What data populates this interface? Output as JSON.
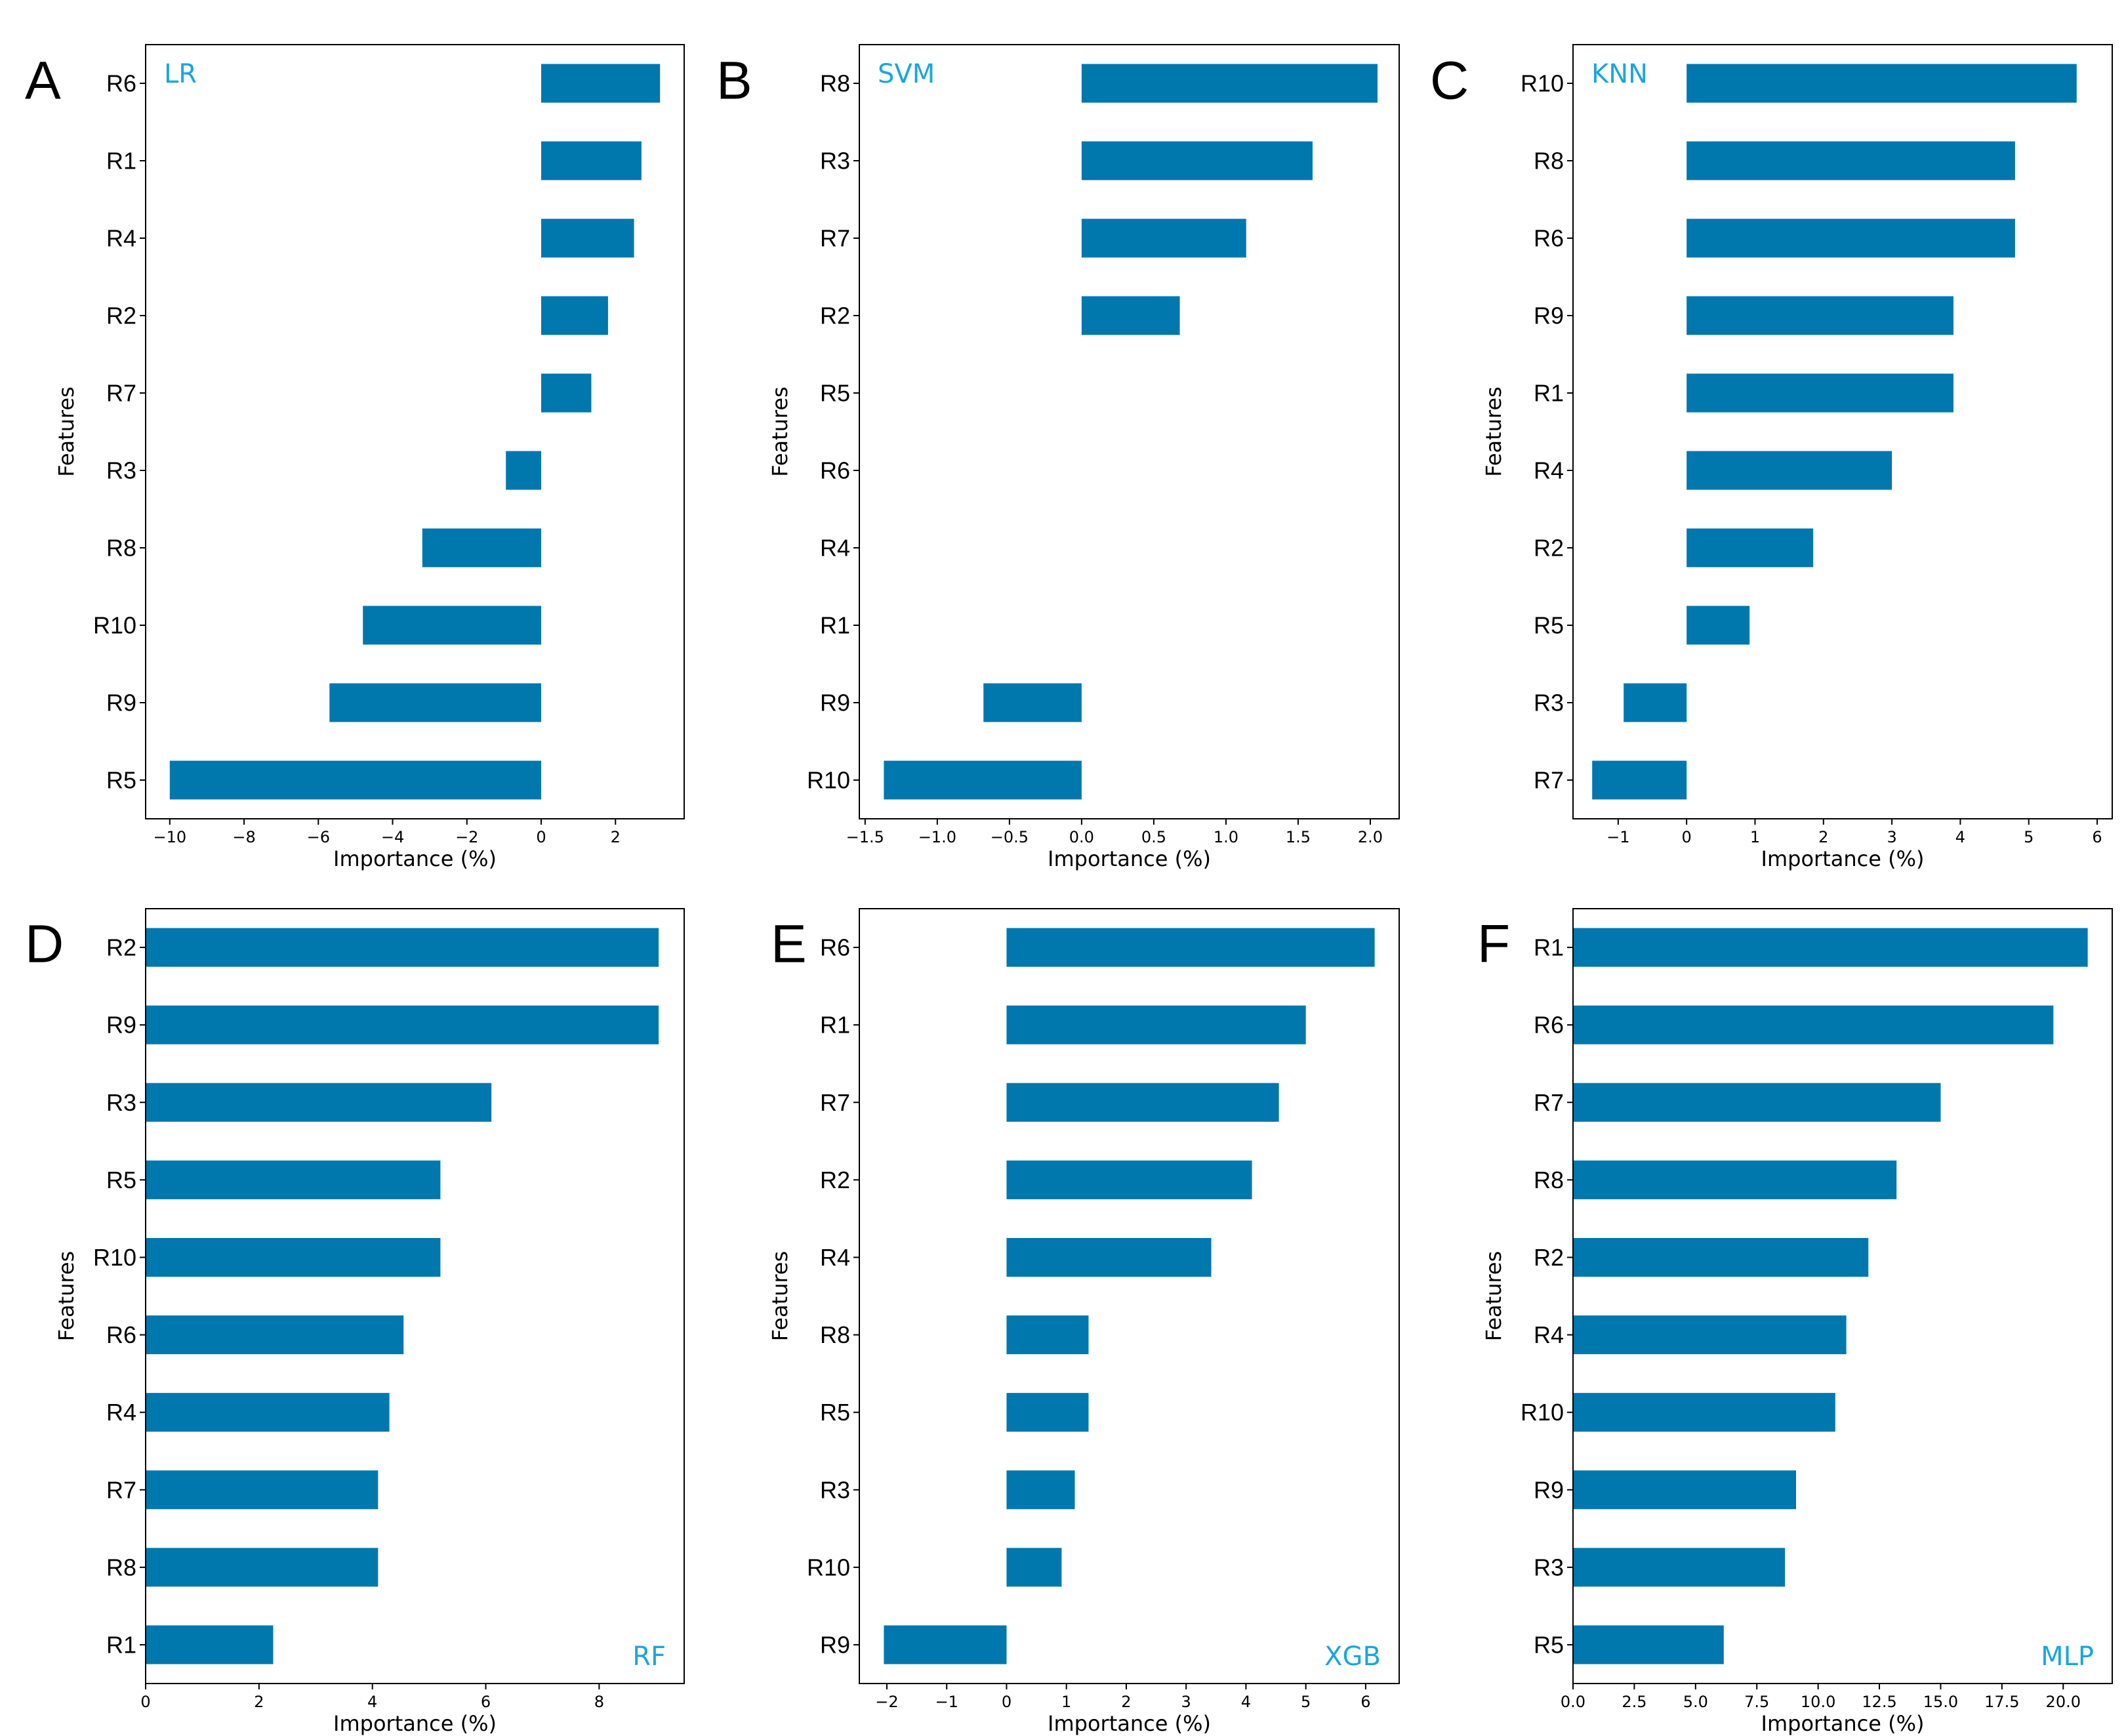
{
  "colors": {
    "bar": "#0077ad",
    "model_label": "#1aa6dc",
    "frame": "#000000"
  },
  "chart_data": [
    {
      "panel": "A",
      "model": "LR",
      "label_position": "top-left",
      "type": "bar",
      "orientation": "horizontal",
      "xlabel": "Importance (%)",
      "ylabel": "Features",
      "categories": [
        "R6",
        "R1",
        "R4",
        "R2",
        "R7",
        "R3",
        "R8",
        "R10",
        "R9",
        "R5"
      ],
      "values": [
        3.2,
        2.7,
        2.5,
        1.8,
        1.35,
        -0.95,
        -3.2,
        -4.8,
        -5.7,
        -10.0
      ],
      "xlim": [
        -10.65,
        3.85
      ],
      "xticks": [
        -10,
        -8,
        -6,
        -4,
        -2,
        0,
        2
      ],
      "xtick_labels": [
        "−10",
        "−8",
        "−6",
        "−4",
        "−2",
        "0",
        "2"
      ]
    },
    {
      "panel": "B",
      "model": "SVM",
      "label_position": "top-left",
      "type": "bar",
      "orientation": "horizontal",
      "xlabel": "Importance (%)",
      "ylabel": "Features",
      "categories": [
        "R8",
        "R3",
        "R7",
        "R2",
        "R5",
        "R6",
        "R4",
        "R1",
        "R9",
        "R10"
      ],
      "values": [
        2.05,
        1.6,
        1.14,
        0.68,
        0,
        0,
        0,
        0,
        -0.68,
        -1.37
      ],
      "xlim": [
        -1.54,
        2.2
      ],
      "xticks": [
        -1.5,
        -1.0,
        -0.5,
        0.0,
        0.5,
        1.0,
        1.5,
        2.0
      ],
      "xtick_labels": [
        "−1.5",
        "−1.0",
        "−0.5",
        "0.0",
        "0.5",
        "1.0",
        "1.5",
        "2.0"
      ]
    },
    {
      "panel": "C",
      "model": "KNN",
      "label_position": "top-left",
      "type": "bar",
      "orientation": "horizontal",
      "xlabel": "Importance (%)",
      "ylabel": "Features",
      "categories": [
        "R10",
        "R8",
        "R6",
        "R9",
        "R1",
        "R4",
        "R2",
        "R5",
        "R3",
        "R7"
      ],
      "values": [
        5.7,
        4.8,
        4.8,
        3.9,
        3.9,
        3.0,
        1.85,
        0.92,
        -0.92,
        -1.38
      ],
      "xlim": [
        -1.66,
        6.22
      ],
      "xticks": [
        -1,
        0,
        1,
        2,
        3,
        4,
        5,
        6
      ],
      "xtick_labels": [
        "−1",
        "0",
        "1",
        "2",
        "3",
        "4",
        "5",
        "6"
      ]
    },
    {
      "panel": "D",
      "model": "RF",
      "label_position": "bottom-right",
      "type": "bar",
      "orientation": "horizontal",
      "xlabel": "Importance (%)",
      "ylabel": "Features",
      "categories": [
        "R2",
        "R9",
        "R3",
        "R5",
        "R10",
        "R6",
        "R4",
        "R7",
        "R8",
        "R1"
      ],
      "values": [
        9.05,
        9.05,
        6.1,
        5.2,
        5.2,
        4.55,
        4.3,
        4.1,
        4.1,
        2.25
      ],
      "xlim": [
        0,
        9.5
      ],
      "xticks": [
        0,
        2,
        4,
        6,
        8
      ],
      "xtick_labels": [
        "0",
        "2",
        "4",
        "6",
        "8"
      ]
    },
    {
      "panel": "E",
      "model": "XGB",
      "label_position": "bottom-right",
      "type": "bar",
      "orientation": "horizontal",
      "xlabel": "Importance (%)",
      "ylabel": "Features",
      "categories": [
        "R6",
        "R1",
        "R7",
        "R2",
        "R4",
        "R8",
        "R5",
        "R3",
        "R10",
        "R9"
      ],
      "values": [
        6.15,
        5.0,
        4.55,
        4.1,
        3.42,
        1.37,
        1.37,
        1.14,
        0.92,
        -2.05
      ],
      "xlim": [
        -2.46,
        6.56
      ],
      "xticks": [
        -2,
        -1,
        0,
        1,
        2,
        3,
        4,
        5,
        6
      ],
      "xtick_labels": [
        "−2",
        "−1",
        "0",
        "1",
        "2",
        "3",
        "4",
        "5",
        "6"
      ]
    },
    {
      "panel": "F",
      "model": "MLP",
      "label_position": "bottom-right",
      "type": "bar",
      "orientation": "horizontal",
      "xlabel": "Importance (%)",
      "ylabel": "Features",
      "categories": [
        "R1",
        "R6",
        "R7",
        "R8",
        "R2",
        "R4",
        "R10",
        "R9",
        "R3",
        "R5"
      ],
      "values": [
        21.0,
        19.6,
        15.0,
        13.2,
        12.05,
        11.15,
        10.7,
        9.1,
        8.65,
        6.15
      ],
      "xlim": [
        0,
        22.0
      ],
      "xticks": [
        0,
        2.5,
        5,
        7.5,
        10,
        12.5,
        15,
        17.5,
        20
      ],
      "xtick_labels": [
        "0.0",
        "2.5",
        "5.0",
        "7.5",
        "10.0",
        "12.5",
        "15.0",
        "17.5",
        "20.0"
      ]
    }
  ]
}
